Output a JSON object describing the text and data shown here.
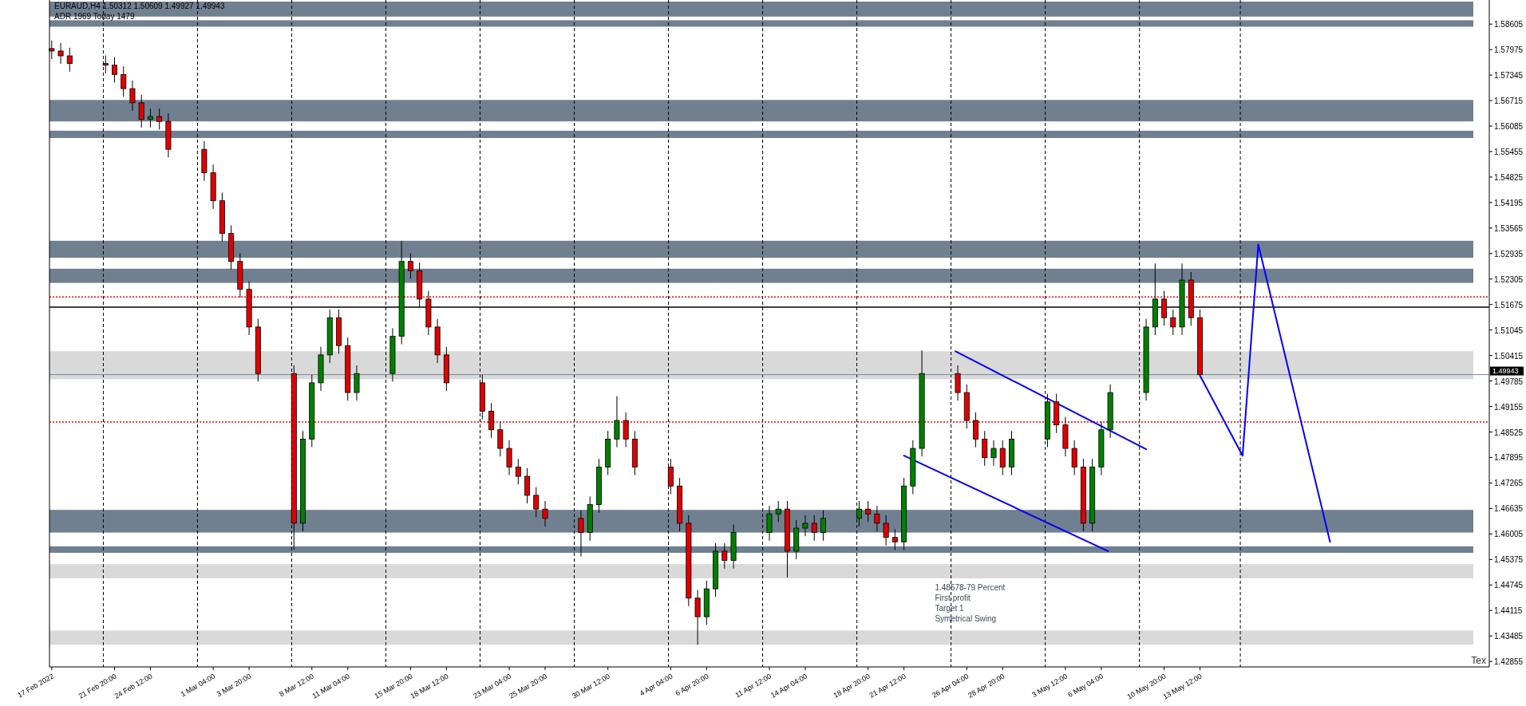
{
  "chart_data": {
    "type": "candlestick",
    "title": "EURAUD,H4  1.50312 1.50609 1.49927 1.49943",
    "subtitle": "ADR 1969  Today 1479",
    "x": [
      "2022-02-17T04:00",
      "2022-02-17T20:00",
      "2022-02-18T12:00",
      "2022-02-21T04:00",
      "2022-02-21T20:00",
      "2022-02-22T12:00",
      "2022-02-23T04:00",
      "2022-02-23T20:00",
      "2022-02-24T12:00",
      "2022-02-25T04:00",
      "2022-02-25T20:00",
      "2022-02-28T12:00",
      "2022-03-01T04:00",
      "2022-03-01T20:00",
      "2022-03-02T12:00",
      "2022-03-03T04:00",
      "2022-03-03T20:00",
      "2022-03-04T12:00",
      "2022-03-07T04:00",
      "2022-03-07T20:00",
      "2022-03-08T12:00",
      "2022-03-09T04:00",
      "2022-03-09T20:00",
      "2022-03-10T12:00",
      "2022-03-11T04:00",
      "2022-03-11T20:00",
      "2022-03-14T12:00",
      "2022-03-15T04:00",
      "2022-03-15T20:00",
      "2022-03-16T12:00",
      "2022-03-17T04:00",
      "2022-03-17T20:00",
      "2022-03-18T12:00",
      "2022-03-21T04:00",
      "2022-03-21T20:00",
      "2022-03-22T12:00",
      "2022-03-23T04:00",
      "2022-03-23T20:00",
      "2022-03-24T12:00",
      "2022-03-25T04:00",
      "2022-03-25T20:00",
      "2022-03-28T12:00",
      "2022-03-29T04:00",
      "2022-03-29T20:00",
      "2022-03-30T12:00",
      "2022-03-31T04:00",
      "2022-03-31T20:00",
      "2022-04-01T12:00",
      "2022-04-04T04:00",
      "2022-04-04T20:00",
      "2022-04-05T12:00",
      "2022-04-06T04:00",
      "2022-04-06T20:00",
      "2022-04-07T12:00",
      "2022-04-08T04:00",
      "2022-04-08T20:00",
      "2022-04-11T12:00",
      "2022-04-12T04:00",
      "2022-04-12T20:00",
      "2022-04-13T12:00",
      "2022-04-14T04:00",
      "2022-04-14T20:00",
      "2022-04-15T12:00",
      "2022-04-18T04:00",
      "2022-04-18T20:00",
      "2022-04-19T12:00",
      "2022-04-20T04:00",
      "2022-04-20T20:00",
      "2022-04-21T12:00",
      "2022-04-22T04:00",
      "2022-04-22T20:00",
      "2022-04-25T12:00",
      "2022-04-26T04:00",
      "2022-04-26T20:00",
      "2022-04-27T12:00",
      "2022-04-28T04:00",
      "2022-04-28T20:00",
      "2022-04-29T12:00",
      "2022-05-02T04:00",
      "2022-05-02T20:00",
      "2022-05-03T12:00",
      "2022-05-04T04:00",
      "2022-05-04T20:00",
      "2022-05-05T12:00",
      "2022-05-06T04:00",
      "2022-05-06T20:00",
      "2022-05-09T12:00",
      "2022-05-10T04:00",
      "2022-05-10T20:00",
      "2022-05-11T12:00",
      "2022-05-12T04:00",
      "2022-05-12T20:00",
      "2022-05-13T12:00"
    ],
    "ohlc": [
      [
        1.58,
        1.582,
        1.5774,
        1.5794
      ],
      [
        1.5794,
        1.5814,
        1.5762,
        1.5782
      ],
      [
        1.5782,
        1.5802,
        1.5743,
        1.5763
      ],
      [
        1.5763,
        1.5783,
        1.5739,
        1.5759
      ],
      [
        1.5759,
        1.5779,
        1.5716,
        1.5736
      ],
      [
        1.5736,
        1.5756,
        1.5681,
        1.5701
      ],
      [
        1.5701,
        1.5721,
        1.5646,
        1.5666
      ],
      [
        1.5666,
        1.5686,
        1.5605,
        1.5625
      ],
      [
        1.5625,
        1.5652,
        1.5605,
        1.5632
      ],
      [
        1.5632,
        1.5652,
        1.56,
        1.562
      ],
      [
        1.562,
        1.564,
        1.5531,
        1.5551
      ],
      [
        1.5551,
        1.5571,
        1.5473,
        1.5493
      ],
      [
        1.5493,
        1.5513,
        1.5404,
        1.5424
      ],
      [
        1.5424,
        1.5444,
        1.5323,
        1.5343
      ],
      [
        1.5343,
        1.5363,
        1.5254,
        1.5274
      ],
      [
        1.5274,
        1.5294,
        1.5185,
        1.5205
      ],
      [
        1.5205,
        1.5225,
        1.5092,
        1.5112
      ],
      [
        1.5112,
        1.5132,
        1.4977,
        1.4997
      ],
      [
        1.4997,
        1.5017,
        1.4562,
        1.4627
      ],
      [
        1.4627,
        1.4855,
        1.4607,
        1.4835
      ],
      [
        1.4835,
        1.4994,
        1.4815,
        1.4974
      ],
      [
        1.4974,
        1.5063,
        1.4954,
        1.5043
      ],
      [
        1.5043,
        1.5155,
        1.5023,
        1.5135
      ],
      [
        1.5135,
        1.5155,
        1.5046,
        1.5066
      ],
      [
        1.5066,
        1.5086,
        1.493,
        1.495
      ],
      [
        1.495,
        1.5017,
        1.493,
        1.4997
      ],
      [
        1.4997,
        1.5109,
        1.4977,
        1.5089
      ],
      [
        1.5089,
        1.5325,
        1.5069,
        1.5274
      ],
      [
        1.5274,
        1.5294,
        1.5231,
        1.5251
      ],
      [
        1.5251,
        1.5271,
        1.5161,
        1.5181
      ],
      [
        1.5181,
        1.5201,
        1.5092,
        1.5112
      ],
      [
        1.5112,
        1.5132,
        1.5023,
        1.5043
      ],
      [
        1.5043,
        1.5063,
        1.4954,
        1.4974
      ],
      [
        1.4974,
        1.4994,
        1.4884,
        1.4904
      ],
      [
        1.4904,
        1.4924,
        1.4838,
        1.4858
      ],
      [
        1.4858,
        1.4878,
        1.4792,
        1.4812
      ],
      [
        1.4812,
        1.4832,
        1.4746,
        1.4766
      ],
      [
        1.4766,
        1.4786,
        1.4723,
        1.4743
      ],
      [
        1.4743,
        1.4763,
        1.4676,
        1.4696
      ],
      [
        1.4696,
        1.4716,
        1.4642,
        1.4662
      ],
      [
        1.4662,
        1.4682,
        1.4619,
        1.4639
      ],
      [
        1.4639,
        1.4659,
        1.4545,
        1.4604
      ],
      [
        1.4604,
        1.4693,
        1.4584,
        1.4673
      ],
      [
        1.4673,
        1.4786,
        1.4653,
        1.4766
      ],
      [
        1.4766,
        1.4855,
        1.4746,
        1.4835
      ],
      [
        1.4835,
        1.4941,
        1.4815,
        1.4881
      ],
      [
        1.4881,
        1.4901,
        1.4815,
        1.4835
      ],
      [
        1.4835,
        1.4855,
        1.4746,
        1.4766
      ],
      [
        1.4766,
        1.4786,
        1.4699,
        1.4719
      ],
      [
        1.4719,
        1.4739,
        1.4607,
        1.4627
      ],
      [
        1.4627,
        1.4647,
        1.4422,
        1.4442
      ],
      [
        1.4442,
        1.4462,
        1.4327,
        1.4396
      ],
      [
        1.4396,
        1.4485,
        1.4376,
        1.4465
      ],
      [
        1.4465,
        1.4578,
        1.4445,
        1.4558
      ],
      [
        1.4558,
        1.4578,
        1.4515,
        1.4535
      ],
      [
        1.4535,
        1.4624,
        1.4515,
        1.4604
      ],
      [
        1.4604,
        1.467,
        1.4584,
        1.465
      ],
      [
        1.465,
        1.4682,
        1.463,
        1.4662
      ],
      [
        1.4662,
        1.4682,
        1.4493,
        1.4558
      ],
      [
        1.4558,
        1.4635,
        1.4538,
        1.4615
      ],
      [
        1.4615,
        1.4647,
        1.4595,
        1.4627
      ],
      [
        1.4627,
        1.4647,
        1.4584,
        1.4604
      ],
      [
        1.4604,
        1.4659,
        1.4584,
        1.4639
      ],
      [
        1.4639,
        1.4682,
        1.4619,
        1.4662
      ],
      [
        1.4662,
        1.4682,
        1.463,
        1.465
      ],
      [
        1.465,
        1.467,
        1.4607,
        1.4627
      ],
      [
        1.4627,
        1.4647,
        1.4572,
        1.4592
      ],
      [
        1.4592,
        1.4612,
        1.4561,
        1.4581
      ],
      [
        1.4581,
        1.4739,
        1.4561,
        1.4719
      ],
      [
        1.4719,
        1.4832,
        1.4699,
        1.4812
      ],
      [
        1.4812,
        1.5054,
        1.4792,
        1.4997
      ],
      [
        1.4997,
        1.5017,
        1.493,
        1.495
      ],
      [
        1.495,
        1.497,
        1.4861,
        1.4881
      ],
      [
        1.4881,
        1.4901,
        1.4815,
        1.4835
      ],
      [
        1.4835,
        1.4855,
        1.4769,
        1.4789
      ],
      [
        1.4789,
        1.4832,
        1.4769,
        1.4812
      ],
      [
        1.4812,
        1.4832,
        1.4746,
        1.4766
      ],
      [
        1.4766,
        1.4855,
        1.4746,
        1.4835
      ],
      [
        1.4835,
        1.4947,
        1.4815,
        1.4927
      ],
      [
        1.4927,
        1.4947,
        1.485,
        1.487
      ],
      [
        1.487,
        1.489,
        1.4792,
        1.4812
      ],
      [
        1.4812,
        1.4832,
        1.4746,
        1.4766
      ],
      [
        1.4766,
        1.4786,
        1.4607,
        1.4627
      ],
      [
        1.4627,
        1.4786,
        1.4607,
        1.4766
      ],
      [
        1.4766,
        1.4878,
        1.4746,
        1.4858
      ],
      [
        1.4858,
        1.497,
        1.4838,
        1.495
      ],
      [
        1.495,
        1.5132,
        1.493,
        1.5112
      ],
      [
        1.5112,
        1.5269,
        1.5092,
        1.5181
      ],
      [
        1.5181,
        1.5201,
        1.5115,
        1.5135
      ],
      [
        1.5135,
        1.5155,
        1.5092,
        1.5112
      ],
      [
        1.5112,
        1.5269,
        1.5092,
        1.5228
      ],
      [
        1.5228,
        1.5248,
        1.5115,
        1.5135
      ],
      [
        1.5135,
        1.5155,
        1.49927,
        1.49943
      ]
    ],
    "series": [
      {
        "type": "line",
        "color": "#0000ff",
        "x": [
          "2022-04-21T12:00",
          "2022-05-06T16:00"
        ],
        "values": [
          1.4794,
          1.4558
        ]
      },
      {
        "type": "line",
        "color": "#0000ff",
        "x": [
          "2022-04-25T08:00",
          "2022-05-09T12:00"
        ],
        "values": [
          1.5052,
          1.481
        ]
      },
      {
        "type": "line",
        "color": "#0000ff",
        "x": [
          "2022-05-13T12:00",
          "2022-05-16T16:00",
          "2022-05-17T20:00",
          "2022-05-23T04:00"
        ],
        "values": [
          1.4992,
          1.4794,
          1.5316,
          1.4581
        ]
      }
    ],
    "xlim": [
      "2022-02-17T00:00",
      "2022-06-04T00:00"
    ],
    "xticks": [
      {
        "value": "2022-02-17T04:00",
        "label": "17 Feb 2022"
      },
      {
        "value": "2022-02-21T20:00",
        "label": "21 Feb 20:00"
      },
      {
        "value": "2022-02-24T12:00",
        "label": "24 Feb 12:00"
      },
      {
        "value": "2022-03-01T04:00",
        "label": "1 Mar 04:00"
      },
      {
        "value": "2022-03-03T20:00",
        "label": "3 Mar 20:00"
      },
      {
        "value": "2022-03-08T12:00",
        "label": "8 Mar 12:00"
      },
      {
        "value": "2022-03-11T04:00",
        "label": "11 Mar 04:00"
      },
      {
        "value": "2022-03-15T20:00",
        "label": "15 Mar 20:00"
      },
      {
        "value": "2022-03-18T12:00",
        "label": "18 Mar 12:00"
      },
      {
        "value": "2022-03-23T04:00",
        "label": "23 Mar 04:00"
      },
      {
        "value": "2022-03-25T20:00",
        "label": "25 Mar 20:00"
      },
      {
        "value": "2022-03-30T12:00",
        "label": "30 Mar 12:00"
      },
      {
        "value": "2022-04-04T04:00",
        "label": "4 Apr 04:00"
      },
      {
        "value": "2022-04-06T20:00",
        "label": "6 Apr 20:00"
      },
      {
        "value": "2022-04-11T12:00",
        "label": "11 Apr 12:00"
      },
      {
        "value": "2022-04-14T04:00",
        "label": "14 Apr 04:00"
      },
      {
        "value": "2022-04-18T20:00",
        "label": "18 Apr 20:00"
      },
      {
        "value": "2022-04-21T12:00",
        "label": "21 Apr 12:00"
      },
      {
        "value": "2022-04-26T04:00",
        "label": "26 Apr 04:00"
      },
      {
        "value": "2022-04-28T20:00",
        "label": "28 Apr 20:00"
      },
      {
        "value": "2022-05-03T12:00",
        "label": "3 May 12:00"
      },
      {
        "value": "2022-05-06T04:00",
        "label": "6 May 04:00"
      },
      {
        "value": "2022-05-10T20:00",
        "label": "10 May 20:00"
      },
      {
        "value": "2022-05-13T12:00",
        "label": "13 May 12:00"
      }
    ],
    "ylim": [
      1.4272,
      1.592
    ],
    "yticks": [
      1.58605,
      1.57975,
      1.57345,
      1.56715,
      1.56085,
      1.55455,
      1.54825,
      1.54195,
      1.53565,
      1.52935,
      1.52305,
      1.51675,
      1.51045,
      1.50415,
      1.49785,
      1.49155,
      1.48525,
      1.47895,
      1.47265,
      1.46635,
      1.46005,
      1.45375,
      1.44745,
      1.44115,
      1.43485,
      1.42855
    ],
    "bands": [
      {
        "axis": "y",
        "from": 1.5879,
        "to": 1.5916,
        "color": "#708090"
      },
      {
        "axis": "y",
        "from": 1.5854,
        "to": 1.587,
        "color": "#708090"
      },
      {
        "axis": "y",
        "from": 1.562,
        "to": 1.5673,
        "color": "#708090"
      },
      {
        "axis": "y",
        "from": 1.5579,
        "to": 1.5597,
        "color": "#708090"
      },
      {
        "axis": "y",
        "from": 1.5283,
        "to": 1.5325,
        "color": "#708090"
      },
      {
        "axis": "y",
        "from": 1.5221,
        "to": 1.5256,
        "color": "#708090"
      },
      {
        "axis": "y",
        "from": 1.4983,
        "to": 1.5052,
        "color": "#d9d9d9"
      },
      {
        "axis": "y",
        "from": 1.4604,
        "to": 1.466,
        "color": "#708090"
      },
      {
        "axis": "y",
        "from": 1.4554,
        "to": 1.457,
        "color": "#708090"
      },
      {
        "axis": "y",
        "from": 1.4491,
        "to": 1.4526,
        "color": "#d9d9d9"
      },
      {
        "axis": "y",
        "from": 1.4327,
        "to": 1.4362,
        "color": "#d9d9d9"
      }
    ],
    "ref_lines": [
      {
        "axis": "x",
        "value": "2022-02-21T00:00",
        "color": "#000000",
        "line_style": "dashed"
      },
      {
        "axis": "x",
        "value": "2022-02-28T00:00",
        "color": "#000000",
        "line_style": "dashed"
      },
      {
        "axis": "x",
        "value": "2022-03-07T00:00",
        "color": "#000000",
        "line_style": "dashed"
      },
      {
        "axis": "x",
        "value": "2022-03-14T00:00",
        "color": "#000000",
        "line_style": "dashed"
      },
      {
        "axis": "x",
        "value": "2022-03-21T00:00",
        "color": "#000000",
        "line_style": "dashed"
      },
      {
        "axis": "x",
        "value": "2022-03-28T00:00",
        "color": "#000000",
        "line_style": "dashed"
      },
      {
        "axis": "x",
        "value": "2022-04-04T00:00",
        "color": "#000000",
        "line_style": "dashed"
      },
      {
        "axis": "x",
        "value": "2022-04-11T00:00",
        "color": "#000000",
        "line_style": "dashed"
      },
      {
        "axis": "x",
        "value": "2022-04-18T00:00",
        "color": "#000000",
        "line_style": "dashed"
      },
      {
        "axis": "x",
        "value": "2022-04-25T00:00",
        "color": "#000000",
        "line_style": "dashed"
      },
      {
        "axis": "x",
        "value": "2022-05-02T00:00",
        "color": "#000000",
        "line_style": "dashed"
      },
      {
        "axis": "x",
        "value": "2022-05-09T00:00",
        "color": "#000000",
        "line_style": "dashed"
      },
      {
        "axis": "x",
        "value": "2022-05-16T12:00",
        "color": "#000000",
        "line_style": "dashed"
      },
      {
        "axis": "y",
        "value": 1.5161,
        "color": "#000000",
        "line_style": "solid"
      },
      {
        "axis": "y",
        "value": 1.5186,
        "color": "#ff0000",
        "line_style": "dotted"
      },
      {
        "axis": "y",
        "value": 1.4877,
        "color": "#ff0000",
        "line_style": "dotted"
      },
      {
        "axis": "y",
        "value": 1.49943,
        "label": "1.49943",
        "color": "#778899",
        "line_style": "solid"
      }
    ],
    "annotations": [
      "1.48578-79 Percent",
      "First profit",
      "Target 1",
      "Symetrical Swing",
      "Tex"
    ]
  }
}
